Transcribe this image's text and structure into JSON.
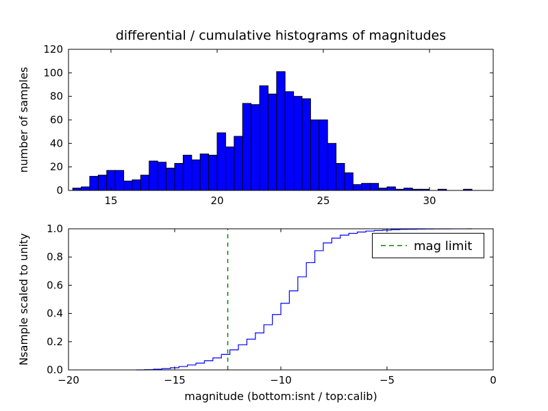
{
  "figure": {
    "background": "#ffffff"
  },
  "chart_data": [
    {
      "type": "bar",
      "subtype": "differential-histogram",
      "title": "differential / cumulative histograms of magnitudes",
      "ylabel": "number of samples",
      "xlim": [
        13,
        33
      ],
      "ylim": [
        0,
        120
      ],
      "xtick_values": [
        15,
        20,
        25,
        30
      ],
      "xtick_labels": [
        "15",
        "20",
        "25",
        "30"
      ],
      "ytick_values": [
        0,
        20,
        40,
        60,
        80,
        100,
        120
      ],
      "ytick_labels": [
        "0",
        "20",
        "40",
        "60",
        "80",
        "100",
        "120"
      ],
      "bar_color": "#0000ff",
      "bar_edge_color": "#000000",
      "bin_start": 13.2,
      "bin_width": 0.4,
      "counts": [
        2,
        3,
        12,
        13,
        17,
        17,
        8,
        9,
        13,
        25,
        24,
        19,
        23,
        30,
        26,
        31,
        30,
        49,
        37,
        46,
        74,
        73,
        89,
        82,
        101,
        84,
        80,
        78,
        60,
        60,
        40,
        23,
        15,
        5,
        6,
        6,
        2,
        3,
        1,
        2,
        1,
        1,
        0,
        1,
        0,
        0,
        1
      ]
    },
    {
      "type": "line",
      "subtype": "cumulative-step-histogram",
      "xlabel": "magnitude (bottom:isnt / top:calib)",
      "ylabel": "Nsample scaled to unity",
      "xlim": [
        -20,
        0
      ],
      "ylim": [
        0,
        1
      ],
      "xtick_values": [
        -20,
        -15,
        -10,
        -5,
        0
      ],
      "xtick_labels": [
        "−20",
        "−15",
        "−10",
        "−5",
        "0"
      ],
      "ytick_values": [
        0,
        0.2,
        0.4,
        0.6,
        0.8,
        1.0
      ],
      "ytick_labels": [
        "0.0",
        "0.2",
        "0.4",
        "0.6",
        "0.8",
        "1.0"
      ],
      "line_color": "#0000ff",
      "step": {
        "x": [
          -16.8,
          -16.4,
          -16.0,
          -15.6,
          -15.2,
          -14.8,
          -14.4,
          -14.0,
          -13.6,
          -13.2,
          -12.8,
          -12.4,
          -12.0,
          -11.6,
          -11.2,
          -10.8,
          -10.4,
          -10.0,
          -9.6,
          -9.2,
          -8.8,
          -8.4,
          -8.0,
          -7.6,
          -7.2,
          -6.8,
          -6.4,
          -6.0,
          -5.6,
          -5.2,
          -4.8,
          -4.4,
          -4.0,
          -3.6,
          -3.2,
          -2.8,
          -2.4,
          -2.0,
          -1.6,
          -1.2
        ],
        "y": [
          0,
          0.002,
          0.005,
          0.009,
          0.015,
          0.024,
          0.035,
          0.048,
          0.065,
          0.085,
          0.11,
          0.142,
          0.178,
          0.218,
          0.262,
          0.32,
          0.392,
          0.472,
          0.56,
          0.66,
          0.76,
          0.845,
          0.9,
          0.934,
          0.955,
          0.968,
          0.977,
          0.984,
          0.988,
          0.991,
          0.994,
          0.996,
          0.997,
          0.998,
          0.9985,
          0.999,
          0.9993,
          0.9996,
          0.9998,
          1.0
        ],
        "x_end": -1.0
      },
      "vline": {
        "x": -12.5,
        "color": "#008000",
        "style": "dashed"
      },
      "legend": {
        "label": "mag limit",
        "position": "upper right"
      }
    }
  ]
}
